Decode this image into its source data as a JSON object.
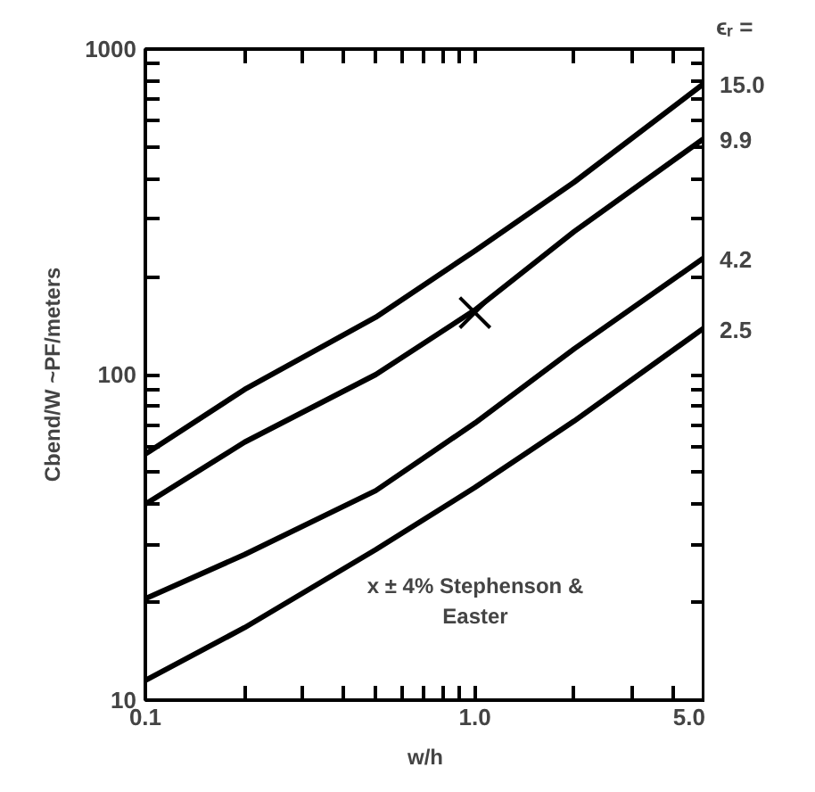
{
  "chart_data": {
    "type": "line",
    "xlabel": "w/h",
    "ylabel": "Cbend/W ~PF/meters",
    "legend_title": "ϵᵣ =",
    "log": "xy",
    "grid": false,
    "legend": "right",
    "xlim": [
      0.1,
      5.0
    ],
    "ylim": [
      10,
      1000
    ],
    "xticks": [
      {
        "value": 0.1,
        "label": "0.1"
      },
      {
        "value": 0.2,
        "label": null
      },
      {
        "value": 0.3,
        "label": null
      },
      {
        "value": 0.4,
        "label": null
      },
      {
        "value": 0.5,
        "label": null
      },
      {
        "value": 0.6,
        "label": null
      },
      {
        "value": 0.7,
        "label": null
      },
      {
        "value": 0.8,
        "label": null
      },
      {
        "value": 0.9,
        "label": null
      },
      {
        "value": 1.0,
        "label": "1.0"
      },
      {
        "value": 2,
        "label": null
      },
      {
        "value": 3,
        "label": null
      },
      {
        "value": 4,
        "label": null
      },
      {
        "value": 5.0,
        "label": "5.0"
      }
    ],
    "yticks": [
      10,
      {
        "value": 20,
        "label": null
      },
      {
        "value": 30,
        "label": null
      },
      {
        "value": 40,
        "label": null
      },
      {
        "value": 50,
        "label": null
      },
      {
        "value": 60,
        "label": null
      },
      {
        "value": 70,
        "label": null
      },
      {
        "value": 80,
        "label": null
      },
      {
        "value": 90,
        "label": null
      },
      100,
      {
        "value": 200,
        "label": null
      },
      {
        "value": 300,
        "label": null
      },
      {
        "value": 400,
        "label": null
      },
      {
        "value": 500,
        "label": null
      },
      {
        "value": 600,
        "label": null
      },
      {
        "value": 700,
        "label": null
      },
      {
        "value": 800,
        "label": null
      },
      {
        "value": 900,
        "label": null
      },
      1000
    ],
    "x": [
      0.1,
      0.2,
      0.5,
      1.0,
      2.0,
      5.0
    ],
    "series": [
      {
        "name": "15.0",
        "color": "#000000",
        "values": [
          57,
          90,
          150,
          240,
          390,
          790
        ]
      },
      {
        "name": "9.9",
        "color": "#000000",
        "values": [
          40,
          62,
          100,
          158,
          275,
          535
        ]
      },
      {
        "name": "4.2",
        "color": "#000000",
        "values": [
          20.5,
          28,
          44,
          71,
          120,
          230
        ]
      },
      {
        "name": "2.5",
        "color": "#000000",
        "values": [
          11.5,
          16.7,
          29,
          45,
          72,
          140
        ]
      },
      {
        "type": "scatter",
        "marker": "cross",
        "color": "#000000",
        "x": [
          1.0
        ],
        "values": [
          155
        ]
      }
    ],
    "annotations": [
      "x ± 4% Stephenson &\nEaster"
    ]
  }
}
